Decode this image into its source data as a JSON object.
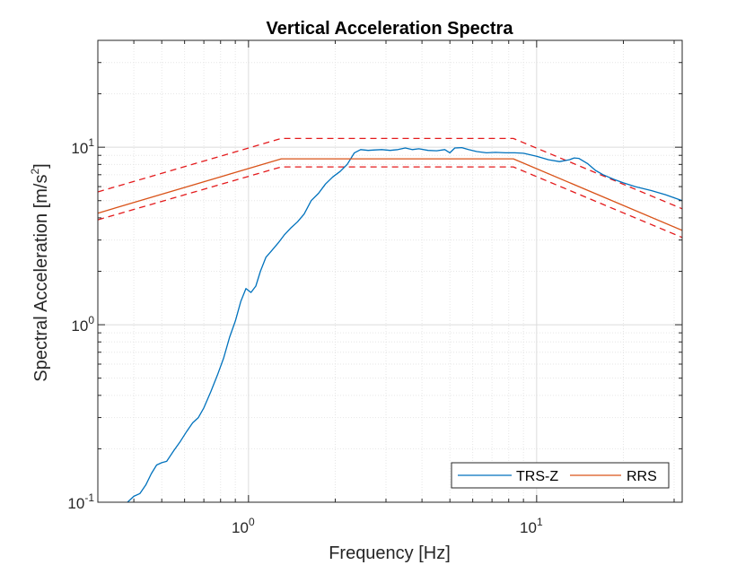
{
  "chart_data": {
    "type": "line",
    "title": "Vertical Acceleration Spectra",
    "xlabel": "Frequency [Hz]",
    "ylabel_main": "Spectral Acceleration [m/s",
    "ylabel_sup": "2",
    "ylabel_end": "]",
    "x_scale": "log",
    "y_scale": "log",
    "xlim": [
      0.3,
      32
    ],
    "ylim": [
      0.1,
      40
    ],
    "grid": true,
    "legend_position": "bottom-right",
    "x_ticks": [
      {
        "value": 1,
        "base": "10",
        "exp": "0"
      },
      {
        "value": 10,
        "base": "10",
        "exp": "1"
      }
    ],
    "y_ticks": [
      {
        "value": 0.1,
        "base": "10",
        "exp": "-1"
      },
      {
        "value": 1,
        "base": "10",
        "exp": "0"
      },
      {
        "value": 10,
        "base": "10",
        "exp": "1"
      }
    ],
    "series": [
      {
        "name": "TRS-Z",
        "color": "#0072BD",
        "style": "solid",
        "x": [
          0.38,
          0.4,
          0.42,
          0.44,
          0.46,
          0.48,
          0.5,
          0.52,
          0.55,
          0.58,
          0.61,
          0.64,
          0.67,
          0.7,
          0.74,
          0.78,
          0.82,
          0.86,
          0.9,
          0.94,
          0.98,
          1.02,
          1.06,
          1.1,
          1.15,
          1.2,
          1.27,
          1.33,
          1.4,
          1.48,
          1.56,
          1.65,
          1.75,
          1.85,
          1.96,
          2.08,
          2.2,
          2.33,
          2.45,
          2.6,
          2.75,
          2.9,
          3.1,
          3.3,
          3.5,
          3.7,
          3.9,
          4.2,
          4.5,
          4.8,
          5.0,
          5.2,
          5.5,
          5.8,
          6.2,
          6.7,
          7.2,
          7.8,
          8.4,
          9.0,
          10.0,
          11.0,
          12.0,
          13.0,
          13.5,
          14.0,
          15.0,
          16.0,
          17.0,
          18.5,
          20.0,
          22.0,
          25.0,
          28.0,
          32.0
        ],
        "y": [
          0.1,
          0.108,
          0.112,
          0.125,
          0.145,
          0.162,
          0.167,
          0.17,
          0.195,
          0.22,
          0.25,
          0.28,
          0.3,
          0.34,
          0.42,
          0.52,
          0.65,
          0.85,
          1.05,
          1.35,
          1.6,
          1.52,
          1.65,
          2.0,
          2.4,
          2.6,
          2.9,
          3.2,
          3.5,
          3.8,
          4.2,
          5.0,
          5.5,
          6.2,
          6.8,
          7.3,
          8.0,
          9.3,
          9.7,
          9.6,
          9.65,
          9.7,
          9.6,
          9.7,
          9.9,
          9.7,
          9.8,
          9.6,
          9.55,
          9.7,
          9.3,
          9.9,
          9.95,
          9.7,
          9.45,
          9.3,
          9.35,
          9.3,
          9.3,
          9.25,
          8.9,
          8.5,
          8.3,
          8.5,
          8.7,
          8.65,
          8.1,
          7.4,
          7.0,
          6.6,
          6.3,
          6.0,
          5.7,
          5.4,
          5.0
        ]
      },
      {
        "name": "RRS",
        "color": "#D95319",
        "style": "solid",
        "x": [
          0.3,
          1.3,
          8.3,
          32.0
        ],
        "y": [
          4.25,
          8.6,
          8.6,
          3.4
        ]
      },
      {
        "name": "",
        "color": "#e41a1c",
        "style": "dashed",
        "x": [
          0.3,
          1.3,
          8.3,
          32.0
        ],
        "y": [
          5.6,
          11.2,
          11.2,
          4.5
        ]
      },
      {
        "name": "",
        "color": "#e41a1c",
        "style": "dashed",
        "x": [
          0.3,
          1.3,
          8.3,
          32.0
        ],
        "y": [
          3.9,
          7.75,
          7.75,
          3.1
        ]
      }
    ]
  }
}
